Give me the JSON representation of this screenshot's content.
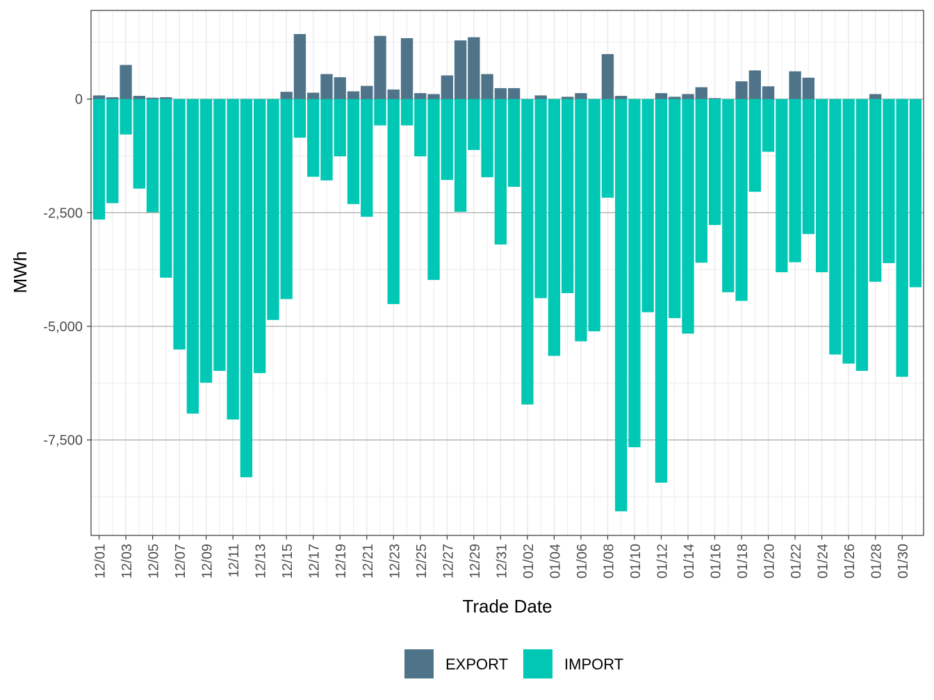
{
  "chart_data": {
    "type": "bar",
    "stacked": true,
    "xlabel": "Trade Date",
    "ylabel": "MWh",
    "ylim": [
      -9600,
      1950
    ],
    "yticks": [
      0,
      -2500,
      -5000,
      -7500
    ],
    "ytick_labels": [
      "0",
      "-2,500",
      "-5,000",
      "-7,500"
    ],
    "grid": true,
    "legend_position": "bottom",
    "categories": [
      "12/01",
      "12/02",
      "12/03",
      "12/04",
      "12/05",
      "12/06",
      "12/07",
      "12/08",
      "12/09",
      "12/10",
      "12/11",
      "12/12",
      "12/13",
      "12/14",
      "12/15",
      "12/16",
      "12/17",
      "12/18",
      "12/19",
      "12/20",
      "12/21",
      "12/22",
      "12/23",
      "12/24",
      "12/25",
      "12/26",
      "12/27",
      "12/28",
      "12/29",
      "12/30",
      "12/31",
      "01/01",
      "01/02",
      "01/03",
      "01/04",
      "01/05",
      "01/06",
      "01/07",
      "01/08",
      "01/09",
      "01/10",
      "01/11",
      "01/12",
      "01/13",
      "01/14",
      "01/15",
      "01/16",
      "01/17",
      "01/18",
      "01/19",
      "01/20",
      "01/21",
      "01/22",
      "01/23",
      "01/24",
      "01/25",
      "01/26",
      "01/27",
      "01/28",
      "01/29",
      "01/30",
      "01/31"
    ],
    "tick_labels": [
      "12/01",
      "12/03",
      "12/05",
      "12/07",
      "12/09",
      "12/11",
      "12/13",
      "12/15",
      "12/17",
      "12/19",
      "12/21",
      "12/23",
      "12/25",
      "12/27",
      "12/29",
      "12/31",
      "01/02",
      "01/04",
      "01/06",
      "01/08",
      "01/10",
      "01/12",
      "01/14",
      "01/16",
      "01/18",
      "01/20",
      "01/22",
      "01/24",
      "01/26",
      "01/28",
      "01/30"
    ],
    "series": [
      {
        "name": "EXPORT",
        "color": "#4f7388",
        "values": [
          80,
          40,
          750,
          70,
          30,
          40,
          0,
          0,
          0,
          0,
          0,
          0,
          0,
          0,
          160,
          1430,
          140,
          550,
          480,
          170,
          290,
          1390,
          210,
          1340,
          130,
          110,
          520,
          1290,
          1360,
          550,
          240,
          240,
          0,
          80,
          0,
          50,
          130,
          0,
          990,
          70,
          0,
          0,
          130,
          50,
          110,
          260,
          20,
          0,
          390,
          630,
          280,
          0,
          610,
          470,
          0,
          0,
          0,
          0,
          110,
          0,
          0,
          0
        ]
      },
      {
        "name": "IMPORT",
        "color": "#00c8b4",
        "values": [
          -2650,
          -2290,
          -780,
          -1970,
          -2490,
          -3930,
          -5510,
          -6920,
          -6240,
          -5980,
          -7050,
          -8320,
          -6030,
          -4860,
          -4400,
          -850,
          -1710,
          -1790,
          -1260,
          -2310,
          -2590,
          -580,
          -4510,
          -580,
          -1260,
          -3980,
          -1780,
          -2480,
          -1120,
          -1720,
          -3200,
          -1930,
          -6720,
          -4380,
          -5650,
          -4270,
          -5330,
          -5110,
          -2170,
          -9070,
          -7660,
          -4690,
          -8440,
          -4820,
          -5160,
          -3600,
          -2770,
          -4250,
          -4440,
          -2040,
          -1160,
          -3810,
          -3590,
          -2970,
          -3810,
          -5620,
          -5820,
          -5980,
          -4020,
          -3610,
          -6110,
          -4140
        ]
      }
    ]
  }
}
